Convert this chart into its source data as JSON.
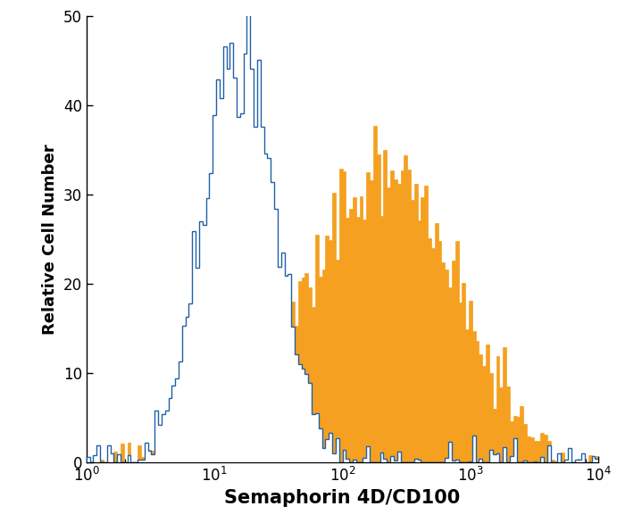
{
  "title": "",
  "xlabel": "Semaphorin 4D/CD100",
  "ylabel": "Relative Cell Number",
  "xlim_log": [
    0,
    4
  ],
  "ylim": [
    0,
    50
  ],
  "yticks": [
    0,
    10,
    20,
    30,
    40,
    50
  ],
  "blue_color": "#2060a8",
  "orange_fill": "#f5a020",
  "xlabel_fontsize": 15,
  "ylabel_fontsize": 13,
  "tick_fontsize": 12,
  "blue_peak_log": 1.18,
  "blue_peak_val": 46,
  "blue_sigma_l": 0.28,
  "blue_sigma_r": 0.3,
  "orange_peak_log": 2.38,
  "orange_peak_val": 34,
  "orange_sigma_l": 0.62,
  "orange_sigma_r": 0.5,
  "n_bins": 150,
  "log_xmin": 0,
  "log_xmax": 4,
  "blue_noise_scale": 0.07,
  "orange_noise_scale": 0.09,
  "blue_cutoff_low": 0.25,
  "orange_cutoff_low": 0.2,
  "blue_taper_start": 1.75,
  "blue_taper_rate": 3.5,
  "orange_taper_start": 3.75,
  "orange_taper_rate": 8.0
}
